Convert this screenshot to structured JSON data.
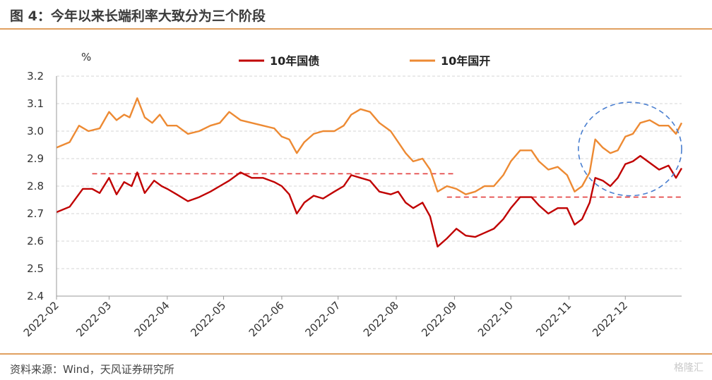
{
  "header": {
    "title": "图 4：今年以来长端利率大致分为三个阶段"
  },
  "footer": {
    "source": "资料来源：Wind，天风证券研究所",
    "watermark": "格隆汇"
  },
  "colors": {
    "series1": "#c00000",
    "series2": "#ed8a33",
    "accent": "#e0a060",
    "dashed_ref": "#e23c3c",
    "ellipse": "#4a7fd0"
  },
  "chart_data": {
    "type": "line",
    "unit": "%",
    "ylim": [
      2.4,
      3.2
    ],
    "yticks": [
      "2.4",
      "2.5",
      "2.6",
      "2.7",
      "2.8",
      "2.9",
      "3.0",
      "3.1",
      "3.2"
    ],
    "x_labels": [
      "2022-02",
      "2022-03",
      "2022-04",
      "2022-05",
      "2022-06",
      "2022-07",
      "2022-08",
      "2022-09",
      "2022-10",
      "2022-11",
      "2022-12"
    ],
    "legend_position": "top",
    "grid": "horizontal dashed",
    "series": [
      {
        "name": "10年国债",
        "color": "#c00000",
        "points": [
          [
            "2022-02-01",
            2.705
          ],
          [
            "2022-02-08",
            2.725
          ],
          [
            "2022-02-15",
            2.79
          ],
          [
            "2022-02-20",
            2.79
          ],
          [
            "2022-02-24",
            2.775
          ],
          [
            "2022-03-01",
            2.83
          ],
          [
            "2022-03-05",
            2.77
          ],
          [
            "2022-03-09",
            2.815
          ],
          [
            "2022-03-13",
            2.8
          ],
          [
            "2022-03-16",
            2.85
          ],
          [
            "2022-03-20",
            2.775
          ],
          [
            "2022-03-25",
            2.82
          ],
          [
            "2022-03-29",
            2.8
          ],
          [
            "2022-04-01",
            2.79
          ],
          [
            "2022-04-06",
            2.77
          ],
          [
            "2022-04-12",
            2.745
          ],
          [
            "2022-04-18",
            2.76
          ],
          [
            "2022-04-24",
            2.78
          ],
          [
            "2022-04-29",
            2.8
          ],
          [
            "2022-05-04",
            2.82
          ],
          [
            "2022-05-10",
            2.85
          ],
          [
            "2022-05-16",
            2.83
          ],
          [
            "2022-05-22",
            2.83
          ],
          [
            "2022-05-28",
            2.815
          ],
          [
            "2022-06-01",
            2.8
          ],
          [
            "2022-06-05",
            2.77
          ],
          [
            "2022-06-09",
            2.7
          ],
          [
            "2022-06-13",
            2.74
          ],
          [
            "2022-06-18",
            2.765
          ],
          [
            "2022-06-23",
            2.755
          ],
          [
            "2022-06-29",
            2.78
          ],
          [
            "2022-07-04",
            2.8
          ],
          [
            "2022-07-08",
            2.84
          ],
          [
            "2022-07-13",
            2.83
          ],
          [
            "2022-07-18",
            2.82
          ],
          [
            "2022-07-23",
            2.78
          ],
          [
            "2022-07-29",
            2.77
          ],
          [
            "2022-08-02",
            2.78
          ],
          [
            "2022-08-06",
            2.74
          ],
          [
            "2022-08-10",
            2.72
          ],
          [
            "2022-08-15",
            2.74
          ],
          [
            "2022-08-19",
            2.69
          ],
          [
            "2022-08-23",
            2.58
          ],
          [
            "2022-08-28",
            2.61
          ],
          [
            "2022-09-02",
            2.645
          ],
          [
            "2022-09-07",
            2.62
          ],
          [
            "2022-09-12",
            2.615
          ],
          [
            "2022-09-17",
            2.63
          ],
          [
            "2022-09-22",
            2.645
          ],
          [
            "2022-09-27",
            2.68
          ],
          [
            "2022-10-01",
            2.72
          ],
          [
            "2022-10-06",
            2.76
          ],
          [
            "2022-10-12",
            2.76
          ],
          [
            "2022-10-16",
            2.73
          ],
          [
            "2022-10-21",
            2.7
          ],
          [
            "2022-10-26",
            2.72
          ],
          [
            "2022-10-31",
            2.72
          ],
          [
            "2022-11-04",
            2.66
          ],
          [
            "2022-11-08",
            2.68
          ],
          [
            "2022-11-12",
            2.74
          ],
          [
            "2022-11-15",
            2.83
          ],
          [
            "2022-11-19",
            2.82
          ],
          [
            "2022-11-23",
            2.8
          ],
          [
            "2022-11-27",
            2.83
          ],
          [
            "2022-12-01",
            2.88
          ],
          [
            "2022-12-05",
            2.89
          ],
          [
            "2022-12-09",
            2.91
          ],
          [
            "2022-12-14",
            2.885
          ],
          [
            "2022-12-19",
            2.86
          ],
          [
            "2022-12-24",
            2.875
          ],
          [
            "2022-12-28",
            2.83
          ],
          [
            "2022-12-31",
            2.865
          ]
        ]
      },
      {
        "name": "10年国开",
        "color": "#ed8a33",
        "points": [
          [
            "2022-02-01",
            2.94
          ],
          [
            "2022-02-08",
            2.96
          ],
          [
            "2022-02-13",
            3.02
          ],
          [
            "2022-02-18",
            3.0
          ],
          [
            "2022-02-24",
            3.01
          ],
          [
            "2022-03-01",
            3.07
          ],
          [
            "2022-03-05",
            3.04
          ],
          [
            "2022-03-09",
            3.06
          ],
          [
            "2022-03-12",
            3.05
          ],
          [
            "2022-03-16",
            3.12
          ],
          [
            "2022-03-20",
            3.05
          ],
          [
            "2022-03-24",
            3.03
          ],
          [
            "2022-03-28",
            3.06
          ],
          [
            "2022-04-01",
            3.02
          ],
          [
            "2022-04-06",
            3.02
          ],
          [
            "2022-04-12",
            2.99
          ],
          [
            "2022-04-18",
            3.0
          ],
          [
            "2022-04-24",
            3.02
          ],
          [
            "2022-04-29",
            3.03
          ],
          [
            "2022-05-04",
            3.07
          ],
          [
            "2022-05-10",
            3.04
          ],
          [
            "2022-05-16",
            3.03
          ],
          [
            "2022-05-22",
            3.02
          ],
          [
            "2022-05-28",
            3.01
          ],
          [
            "2022-06-01",
            2.98
          ],
          [
            "2022-06-05",
            2.97
          ],
          [
            "2022-06-09",
            2.92
          ],
          [
            "2022-06-13",
            2.96
          ],
          [
            "2022-06-18",
            2.99
          ],
          [
            "2022-06-23",
            3.0
          ],
          [
            "2022-06-29",
            3.0
          ],
          [
            "2022-07-04",
            3.02
          ],
          [
            "2022-07-08",
            3.06
          ],
          [
            "2022-07-13",
            3.08
          ],
          [
            "2022-07-18",
            3.07
          ],
          [
            "2022-07-23",
            3.03
          ],
          [
            "2022-07-29",
            3.0
          ],
          [
            "2022-08-02",
            2.96
          ],
          [
            "2022-08-06",
            2.92
          ],
          [
            "2022-08-10",
            2.89
          ],
          [
            "2022-08-15",
            2.9
          ],
          [
            "2022-08-19",
            2.86
          ],
          [
            "2022-08-23",
            2.78
          ],
          [
            "2022-08-28",
            2.8
          ],
          [
            "2022-09-02",
            2.79
          ],
          [
            "2022-09-07",
            2.77
          ],
          [
            "2022-09-12",
            2.78
          ],
          [
            "2022-09-17",
            2.8
          ],
          [
            "2022-09-22",
            2.8
          ],
          [
            "2022-09-27",
            2.84
          ],
          [
            "2022-10-01",
            2.89
          ],
          [
            "2022-10-06",
            2.93
          ],
          [
            "2022-10-12",
            2.93
          ],
          [
            "2022-10-16",
            2.89
          ],
          [
            "2022-10-21",
            2.86
          ],
          [
            "2022-10-26",
            2.87
          ],
          [
            "2022-10-31",
            2.84
          ],
          [
            "2022-11-04",
            2.78
          ],
          [
            "2022-11-08",
            2.8
          ],
          [
            "2022-11-12",
            2.85
          ],
          [
            "2022-11-15",
            2.97
          ],
          [
            "2022-11-19",
            2.94
          ],
          [
            "2022-11-23",
            2.92
          ],
          [
            "2022-11-27",
            2.93
          ],
          [
            "2022-12-01",
            2.98
          ],
          [
            "2022-12-05",
            2.99
          ],
          [
            "2022-12-09",
            3.03
          ],
          [
            "2022-12-14",
            3.04
          ],
          [
            "2022-12-19",
            3.02
          ],
          [
            "2022-12-24",
            3.02
          ],
          [
            "2022-12-28",
            2.99
          ],
          [
            "2022-12-31",
            3.03
          ]
        ]
      }
    ],
    "reference_lines": [
      {
        "y": 2.845,
        "x_start": "2022-02-20",
        "x_end": "2022-09-01",
        "style": "dashed"
      },
      {
        "y": 2.76,
        "x_start": "2022-08-28",
        "x_end": "2022-12-31",
        "style": "dashed"
      }
    ],
    "highlight": {
      "shape": "ellipse",
      "x_range": [
        "2022-11-06",
        "2022-12-31"
      ],
      "y_range": [
        2.765,
        3.105
      ],
      "style": "dashed"
    }
  }
}
